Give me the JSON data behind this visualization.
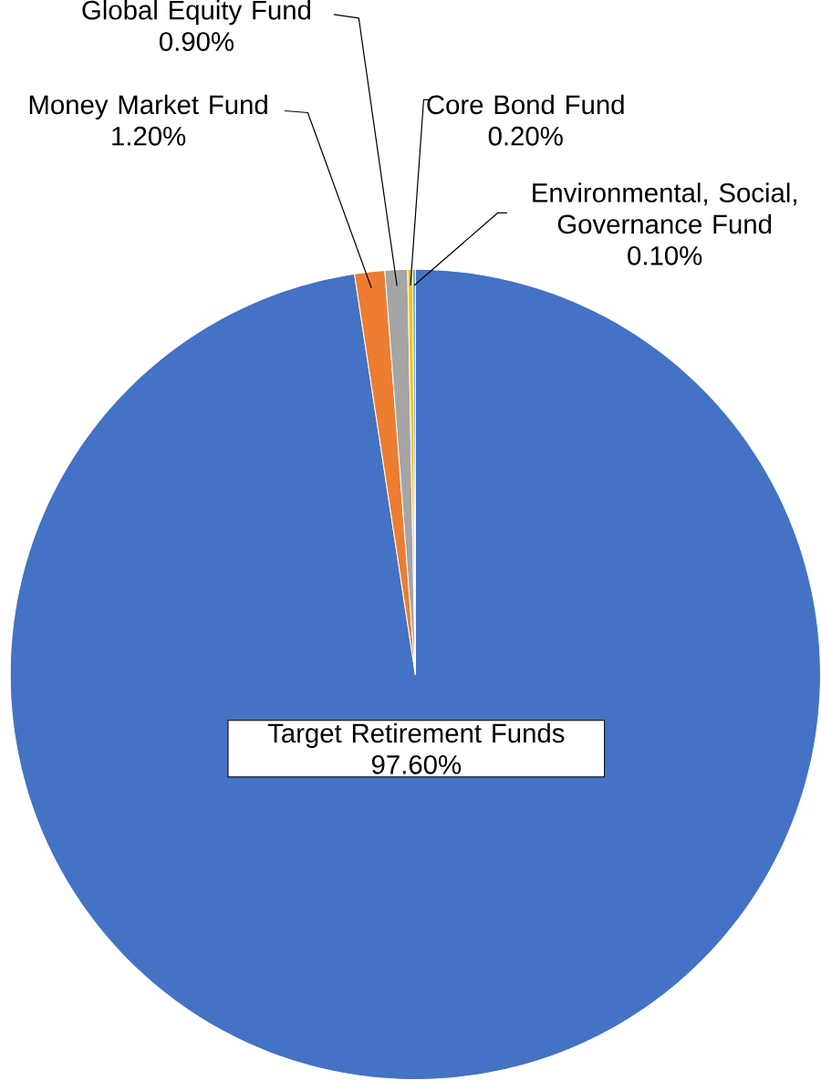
{
  "chart_data": {
    "type": "pie",
    "categories": [
      "Target Retirement Funds",
      "Money Market Fund",
      "Global Equity Fund",
      "Core Bond Fund",
      "Environmental, Social, Governance Fund"
    ],
    "values": [
      97.6,
      1.2,
      0.9,
      0.2,
      0.1
    ],
    "value_labels": [
      "97.60%",
      "1.20%",
      "0.90%",
      "0.20%",
      "0.10%"
    ],
    "colors": [
      "#4472c4",
      "#ed7d31",
      "#a5a5a5",
      "#ffc000",
      "#5b9bd5"
    ]
  }
}
